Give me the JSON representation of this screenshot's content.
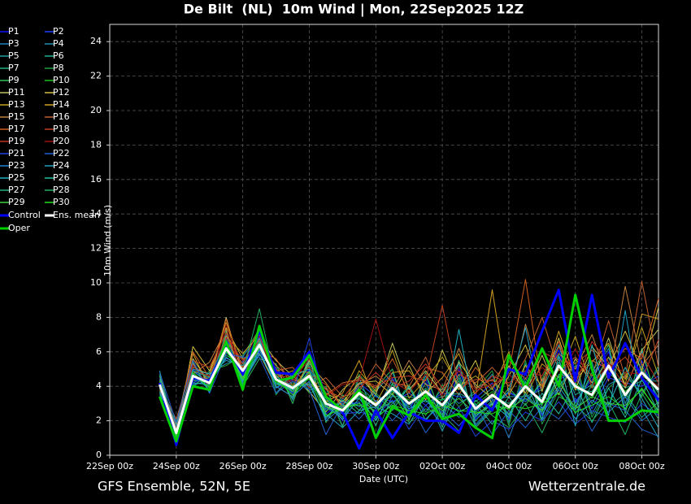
{
  "chart_data": {
    "type": "line",
    "title": "De Bilt  (NL)  10m Wind | Mon, 22Sep2025 12Z",
    "xlabel": "Date (UTC)",
    "ylabel": "10m Wind (m/s)",
    "footer_left": "GFS Ensemble, 52N, 5E",
    "footer_right": "Wetterzentrale.de",
    "x": [
      "23Sep 12z",
      "24Sep 00z",
      "24Sep 12z",
      "25Sep 00z",
      "25Sep 12z",
      "26Sep 00z",
      "26Sep 12z",
      "27Sep 00z",
      "27Sep 12z",
      "28Sep 00z",
      "28Sep 12z",
      "29Sep 00z",
      "29Sep 12z",
      "30Sep 00z",
      "30Sep 12z",
      "01Oct 00z",
      "01Oct 12z",
      "02Oct 00z",
      "02Oct 12z",
      "03Oct 00z",
      "03Oct 12z",
      "04Oct 00z",
      "04Oct 12z",
      "05Oct 00z",
      "05Oct 12z",
      "06Oct 00z",
      "06Oct 12z",
      "07Oct 00z",
      "07Oct 12z",
      "08Oct 00z",
      "08Oct 12z"
    ],
    "xlim": [
      "22Sep 00z",
      "08Oct 12z"
    ],
    "xticks": [
      "22Sep 00z",
      "24Sep 00z",
      "26Sep 00z",
      "28Sep 00z",
      "30Sep 00z",
      "02Oct 00z",
      "04Oct 00z",
      "06Oct 00z",
      "08Oct 00z"
    ],
    "ylim": [
      0,
      25
    ],
    "yticks": [
      0,
      2,
      4,
      6,
      8,
      10,
      12,
      14,
      16,
      18,
      20,
      22,
      24
    ],
    "grid": true,
    "series": [
      {
        "name": "P1",
        "color": "#1010ff",
        "values": [
          4.5,
          1.0,
          5.0,
          4.0,
          6.8,
          4.5,
          6.0,
          4.9,
          3.5,
          5.0,
          2.4,
          3.1,
          3.0,
          2.2,
          4.5,
          2.6,
          4.4,
          1.9,
          5.0,
          2.1,
          3.0,
          3.6,
          3.2,
          4.0,
          6.1,
          3.1,
          4.4,
          6.0,
          2.7,
          5.5,
          3.1
        ]
      },
      {
        "name": "P2",
        "color": "#2040ff",
        "values": [
          3.8,
          1.6,
          4.2,
          4.6,
          5.6,
          5.4,
          6.9,
          3.9,
          4.4,
          4.0,
          3.5,
          2.0,
          4.2,
          3.4,
          3.1,
          3.6,
          2.9,
          3.6,
          3.4,
          3.3,
          4.2,
          2.1,
          4.8,
          2.3,
          4.4,
          4.8,
          2.7,
          4.5,
          4.2,
          4.0,
          4.6
        ]
      },
      {
        "name": "P3",
        "color": "#2080c0",
        "values": [
          4.6,
          0.9,
          5.3,
          3.7,
          7.0,
          4.2,
          5.8,
          5.1,
          3.2,
          5.6,
          2.1,
          3.3,
          2.8,
          3.7,
          4.8,
          2.2,
          4.6,
          2.3,
          5.3,
          1.8,
          2.8,
          3.7,
          3.1,
          4.2,
          6.4,
          3.0,
          4.6,
          6.2,
          2.6,
          6.0,
          2.9
        ]
      },
      {
        "name": "P4",
        "color": "#2090b0",
        "values": [
          3.6,
          1.9,
          4.0,
          4.8,
          5.3,
          5.7,
          7.1,
          3.6,
          4.7,
          3.8,
          3.9,
          1.7,
          4.5,
          2.1,
          3.0,
          3.9,
          2.5,
          3.9,
          3.0,
          3.6,
          4.7,
          1.9,
          5.3,
          2.0,
          4.0,
          5.2,
          2.4,
          4.1,
          4.6,
          3.6,
          5.0
        ]
      },
      {
        "name": "P5",
        "color": "#20a0a0",
        "values": [
          4.9,
          1.1,
          4.8,
          3.9,
          6.5,
          4.4,
          6.1,
          4.7,
          3.6,
          5.2,
          2.7,
          3.0,
          3.3,
          2.5,
          4.4,
          2.4,
          4.2,
          2.0,
          4.7,
          2.2,
          3.2,
          3.4,
          3.4,
          3.8,
          5.8,
          3.5,
          4.1,
          5.7,
          3.0,
          5.2,
          3.3
        ]
      },
      {
        "name": "P6",
        "color": "#20b090",
        "values": [
          3.9,
          1.5,
          4.3,
          4.5,
          5.8,
          5.2,
          6.7,
          4.1,
          4.2,
          4.2,
          3.3,
          2.2,
          4.0,
          3.1,
          3.4,
          3.4,
          3.1,
          3.4,
          3.6,
          3.1,
          3.9,
          2.3,
          4.5,
          2.6,
          4.7,
          4.5,
          3.0,
          4.8,
          3.9,
          4.3,
          4.3
        ]
      },
      {
        "name": "P7",
        "color": "#20b080",
        "values": [
          4.3,
          1.2,
          4.9,
          4.1,
          6.4,
          4.7,
          6.3,
          4.6,
          3.7,
          4.9,
          2.8,
          2.8,
          3.4,
          2.7,
          4.1,
          2.8,
          3.9,
          2.7,
          4.3,
          2.5,
          3.4,
          3.0,
          3.8,
          3.3,
          5.4,
          3.8,
          3.7,
          5.4,
          3.3,
          5.0,
          3.6
        ]
      },
      {
        "name": "P8",
        "color": "#20a040",
        "values": [
          3.5,
          2.0,
          3.9,
          4.9,
          5.2,
          5.8,
          7.3,
          3.5,
          4.8,
          3.6,
          4.0,
          1.6,
          4.7,
          3.6,
          2.8,
          4.1,
          2.3,
          4.1,
          2.8,
          3.8,
          4.9,
          1.7,
          5.5,
          1.8,
          3.8,
          5.4,
          2.2,
          3.9,
          4.8,
          3.4,
          5.2
        ]
      },
      {
        "name": "P9",
        "color": "#30c060",
        "values": [
          4.7,
          0.8,
          5.4,
          3.6,
          7.2,
          4.0,
          5.6,
          5.3,
          3.0,
          5.8,
          1.9,
          3.5,
          2.6,
          3.9,
          5.0,
          2.0,
          4.8,
          2.1,
          5.5,
          1.6,
          2.6,
          3.9,
          2.9,
          4.4,
          6.6,
          2.8,
          4.8,
          6.4,
          2.4,
          6.2,
          2.7
        ]
      },
      {
        "name": "P10",
        "color": "#20c020",
        "values": [
          4.0,
          1.4,
          4.4,
          4.4,
          6.0,
          5.1,
          6.6,
          4.2,
          4.1,
          4.4,
          3.2,
          2.4,
          3.8,
          3.0,
          3.7,
          3.2,
          3.4,
          3.2,
          3.9,
          2.9,
          3.7,
          2.6,
          4.2,
          2.9,
          5.0,
          4.2,
          3.3,
          5.0,
          3.7,
          4.6,
          4.0
        ]
      },
      {
        "name": "P11",
        "color": "#c0c060",
        "values": [
          4.4,
          1.7,
          5.6,
          4.2,
          8.0,
          4.6,
          6.8,
          5.5,
          4.6,
          3.7,
          2.5,
          3.8,
          4.6,
          3.5,
          6.5,
          3.8,
          4.9,
          3.6,
          5.4,
          4.1,
          3.3,
          5.2,
          3.6,
          5.8,
          3.5,
          5.6,
          4.2,
          6.8,
          3.9,
          6.1,
          7.3
        ]
      },
      {
        "name": "P12",
        "color": "#d0c040",
        "values": [
          3.7,
          1.2,
          6.3,
          4.9,
          7.4,
          5.6,
          5.9,
          4.0,
          3.4,
          5.5,
          3.6,
          3.1,
          4.2,
          4.3,
          3.5,
          5.2,
          3.2,
          6.1,
          3.8,
          5.5,
          2.9,
          4.6,
          6.4,
          3.7,
          6.8,
          3.8,
          6.3,
          5.1,
          7.2,
          4.9,
          8.6
        ]
      },
      {
        "name": "P13",
        "color": "#c0a020",
        "values": [
          4.2,
          0.9,
          5.1,
          4.7,
          7.7,
          5.0,
          6.2,
          4.8,
          3.8,
          5.3,
          4.2,
          2.8,
          4.9,
          3.7,
          6.1,
          3.3,
          4.4,
          5.7,
          4.0,
          4.6,
          3.8,
          6.0,
          3.4,
          5.3,
          4.5,
          6.9,
          3.9,
          5.7,
          4.4,
          7.4,
          4.6
        ]
      },
      {
        "name": "P14",
        "color": "#d0a020",
        "values": [
          3.9,
          1.8,
          5.9,
          3.9,
          6.9,
          5.9,
          7.0,
          4.5,
          4.9,
          4.8,
          3.1,
          3.6,
          5.5,
          3.0,
          4.8,
          4.9,
          3.6,
          4.5,
          5.9,
          3.4,
          9.6,
          3.5,
          5.2,
          4.0,
          7.2,
          4.4,
          5.4,
          6.5,
          4.1,
          8.2,
          7.9
        ]
      },
      {
        "name": "P15",
        "color": "#c08040",
        "values": [
          4.6,
          1.4,
          4.7,
          5.4,
          7.3,
          4.3,
          6.5,
          5.2,
          4.4,
          4.1,
          3.9,
          2.9,
          4.1,
          4.6,
          3.8,
          5.5,
          4.1,
          3.8,
          6.2,
          3.9,
          4.4,
          3.3,
          7.6,
          4.3,
          5.9,
          5.0,
          7.0,
          4.3,
          9.8,
          5.2,
          6.4
        ]
      },
      {
        "name": "P16",
        "color": "#c06030",
        "values": [
          4.0,
          2.1,
          5.3,
          4.3,
          6.6,
          5.3,
          7.4,
          4.9,
          5.1,
          3.9,
          4.5,
          3.4,
          3.7,
          5.3,
          4.2,
          4.0,
          5.7,
          3.3,
          4.7,
          4.2,
          5.1,
          4.0,
          5.6,
          8.0,
          4.9,
          5.7,
          4.6,
          7.8,
          4.5,
          10.1,
          5.1
        ]
      },
      {
        "name": "P17",
        "color": "#d06020",
        "values": [
          3.8,
          1.5,
          6.0,
          4.5,
          7.9,
          4.8,
          6.1,
          5.6,
          4.0,
          5.9,
          3.5,
          4.2,
          4.4,
          3.9,
          5.6,
          3.6,
          5.1,
          4.8,
          3.5,
          5.1,
          3.9,
          4.8,
          10.2,
          3.9,
          6.3,
          4.6,
          5.5,
          5.0,
          6.2,
          5.6,
          9.1
        ]
      },
      {
        "name": "P18",
        "color": "#c04020",
        "values": [
          4.3,
          1.1,
          5.5,
          5.1,
          7.1,
          5.1,
          6.7,
          4.6,
          4.5,
          5.1,
          3.8,
          3.3,
          4.5,
          4.0,
          4.5,
          4.6,
          4.3,
          8.7,
          3.9,
          4.4,
          4.3,
          5.5,
          4.4,
          6.0,
          5.5,
          5.3,
          6.1,
          4.9,
          5.7,
          4.4,
          6.7
        ]
      },
      {
        "name": "P19",
        "color": "#c03020",
        "values": [
          4.1,
          1.6,
          4.9,
          4.6,
          6.8,
          5.5,
          6.4,
          5.0,
          3.9,
          4.7,
          4.1,
          2.7,
          3.9,
          4.8,
          3.9,
          4.3,
          5.3,
          3.9,
          4.9,
          3.6,
          4.6,
          4.2,
          4.9,
          4.6,
          6.6,
          4.1,
          6.6,
          5.4,
          4.0,
          5.9,
          4.2
        ]
      },
      {
        "name": "P20",
        "color": "#a01010",
        "values": [
          4.5,
          1.3,
          5.2,
          4.0,
          7.6,
          4.5,
          6.9,
          4.3,
          4.3,
          5.6,
          3.4,
          4.1,
          4.3,
          7.9,
          4.3,
          3.7,
          4.7,
          3.5,
          5.1,
          3.8,
          4.1,
          4.7,
          3.8,
          5.1,
          4.2,
          6.2,
          4.0,
          5.3,
          4.8,
          4.7,
          4.0
        ]
      },
      {
        "name": "P21",
        "color": "#2040e0",
        "values": [
          4.2,
          0.7,
          4.4,
          4.4,
          6.1,
          4.6,
          6.3,
          4.5,
          3.6,
          6.8,
          2.7,
          2.4,
          2.5,
          2.3,
          3.2,
          1.5,
          2.9,
          1.8,
          2.8,
          1.1,
          2.0,
          1.5,
          2.5,
          2.0,
          3.1,
          1.8,
          2.6,
          2.2,
          1.9,
          3.0,
          2.3
        ]
      },
      {
        "name": "P22",
        "color": "#2060d0",
        "values": [
          4.8,
          1.9,
          5.5,
          3.6,
          5.9,
          5.7,
          5.7,
          3.6,
          4.3,
          3.8,
          1.2,
          3.0,
          2.1,
          3.2,
          2.0,
          3.1,
          1.3,
          2.6,
          1.7,
          2.9,
          1.2,
          2.6,
          1.6,
          2.8,
          2.1,
          3.3,
          1.4,
          3.0,
          2.6,
          1.5,
          1.1
        ]
      },
      {
        "name": "P23",
        "color": "#2080d0",
        "values": [
          3.5,
          1.0,
          4.1,
          4.3,
          6.5,
          4.0,
          6.1,
          4.0,
          3.4,
          4.3,
          2.0,
          2.8,
          3.1,
          1.1,
          3.5,
          2.5,
          2.1,
          3.0,
          2.2,
          2.6,
          3.3,
          1.0,
          3.5,
          2.4,
          3.8,
          2.1,
          3.2,
          2.5,
          3.4,
          2.0,
          2.8
        ]
      },
      {
        "name": "P24",
        "color": "#20a0c0",
        "values": [
          4.4,
          1.7,
          5.0,
          4.7,
          5.5,
          5.2,
          6.8,
          3.9,
          4.6,
          5.0,
          2.4,
          1.6,
          2.6,
          2.8,
          2.4,
          1.8,
          3.5,
          1.4,
          3.6,
          1.7,
          2.7,
          3.7,
          7.4,
          2.7,
          4.0,
          2.6,
          5.4,
          2.3,
          8.4,
          2.7,
          1.0
        ]
      },
      {
        "name": "P25",
        "color": "#20b0c0",
        "values": [
          3.7,
          1.2,
          4.7,
          3.8,
          6.3,
          4.3,
          5.9,
          4.2,
          3.8,
          4.5,
          2.9,
          2.1,
          3.3,
          2.0,
          3.8,
          2.7,
          3.2,
          2.2,
          7.3,
          2.3,
          3.0,
          2.2,
          4.3,
          2.1,
          5.7,
          1.7,
          6.4,
          2.9,
          5.1,
          3.3,
          1.6
        ]
      },
      {
        "name": "P26",
        "color": "#20c0a0",
        "values": [
          4.0,
          1.5,
          4.2,
          4.1,
          5.7,
          4.9,
          6.6,
          4.4,
          4.0,
          4.1,
          2.2,
          3.2,
          2.4,
          3.5,
          2.6,
          4.0,
          2.0,
          3.3,
          2.5,
          3.0,
          1.8,
          3.4,
          2.0,
          3.6,
          2.4,
          4.2,
          1.9,
          3.9,
          2.2,
          4.4,
          2.5
        ]
      },
      {
        "name": "P27",
        "color": "#20b080",
        "values": [
          4.6,
          0.9,
          4.9,
          4.5,
          6.7,
          4.1,
          6.2,
          4.7,
          3.3,
          5.4,
          3.1,
          2.2,
          3.8,
          1.7,
          4.2,
          2.3,
          3.8,
          1.6,
          4.5,
          2.0,
          3.1,
          2.4,
          3.6,
          2.5,
          4.6,
          2.4,
          4.1,
          2.8,
          3.6,
          2.2,
          3.1
        ]
      },
      {
        "name": "P28",
        "color": "#20b060",
        "values": [
          3.9,
          1.4,
          4.6,
          4.0,
          6.0,
          4.8,
          8.5,
          4.1,
          4.0,
          4.6,
          2.6,
          2.9,
          2.9,
          2.6,
          3.1,
          1.9,
          2.7,
          2.4,
          1.4,
          3.2,
          2.3,
          1.6,
          3.0,
          1.3,
          3.4,
          2.9,
          2.0,
          3.1,
          1.2,
          3.6,
          2.1
        ]
      },
      {
        "name": "P29",
        "color": "#40d040",
        "values": [
          4.3,
          1.1,
          4.5,
          4.2,
          6.3,
          4.5,
          6.5,
          4.3,
          3.7,
          4.8,
          2.8,
          2.5,
          3.5,
          2.4,
          3.6,
          2.1,
          3.4,
          2.6,
          3.3,
          2.4,
          2.9,
          2.7,
          3.3,
          2.6,
          4.3,
          2.7,
          3.4,
          3.0,
          2.9,
          3.8,
          2.6
        ]
      },
      {
        "name": "P30",
        "color": "#20e020",
        "values": [
          4.1,
          1.3,
          4.8,
          3.9,
          6.1,
          4.4,
          6.3,
          4.4,
          3.5,
          4.5,
          2.3,
          2.7,
          3.0,
          2.2,
          2.9,
          2.6,
          2.4,
          2.9,
          2.6,
          2.5,
          2.4,
          2.9,
          2.7,
          3.0,
          3.6,
          2.5,
          2.9,
          3.4,
          2.7,
          3.9,
          2.4
        ]
      },
      {
        "name": "Control",
        "color": "#0000ff",
        "values": [
          4.2,
          0.6,
          4.5,
          4.3,
          6.4,
          4.7,
          7.2,
          4.8,
          4.7,
          6.0,
          3.4,
          2.5,
          0.4,
          2.6,
          1.0,
          2.5,
          2.0,
          2.0,
          1.3,
          3.5,
          2.6,
          5.0,
          4.7,
          7.2,
          9.6,
          4.3,
          9.3,
          4.5,
          6.5,
          4.5,
          3.2
        ]
      },
      {
        "name": "Ens. mean",
        "color": "#ffffff",
        "values": [
          4.1,
          1.3,
          4.6,
          4.2,
          6.2,
          4.9,
          6.4,
          4.4,
          3.9,
          4.6,
          3.0,
          2.6,
          3.6,
          2.9,
          3.9,
          3.0,
          3.7,
          2.9,
          4.1,
          2.7,
          3.5,
          2.8,
          4.0,
          3.1,
          5.2,
          4.0,
          3.5,
          5.2,
          3.5,
          4.8,
          3.8
        ]
      },
      {
        "name": "Oper",
        "color": "#00d000",
        "values": [
          3.4,
          0.8,
          4.0,
          3.8,
          6.6,
          3.8,
          7.5,
          4.3,
          4.5,
          5.8,
          3.4,
          2.6,
          3.8,
          1.0,
          2.8,
          2.3,
          3.5,
          2.1,
          2.4,
          1.6,
          1.0,
          5.8,
          3.9,
          6.2,
          4.0,
          9.3,
          5.0,
          2.0,
          2.0,
          2.6,
          2.5
        ]
      }
    ]
  }
}
